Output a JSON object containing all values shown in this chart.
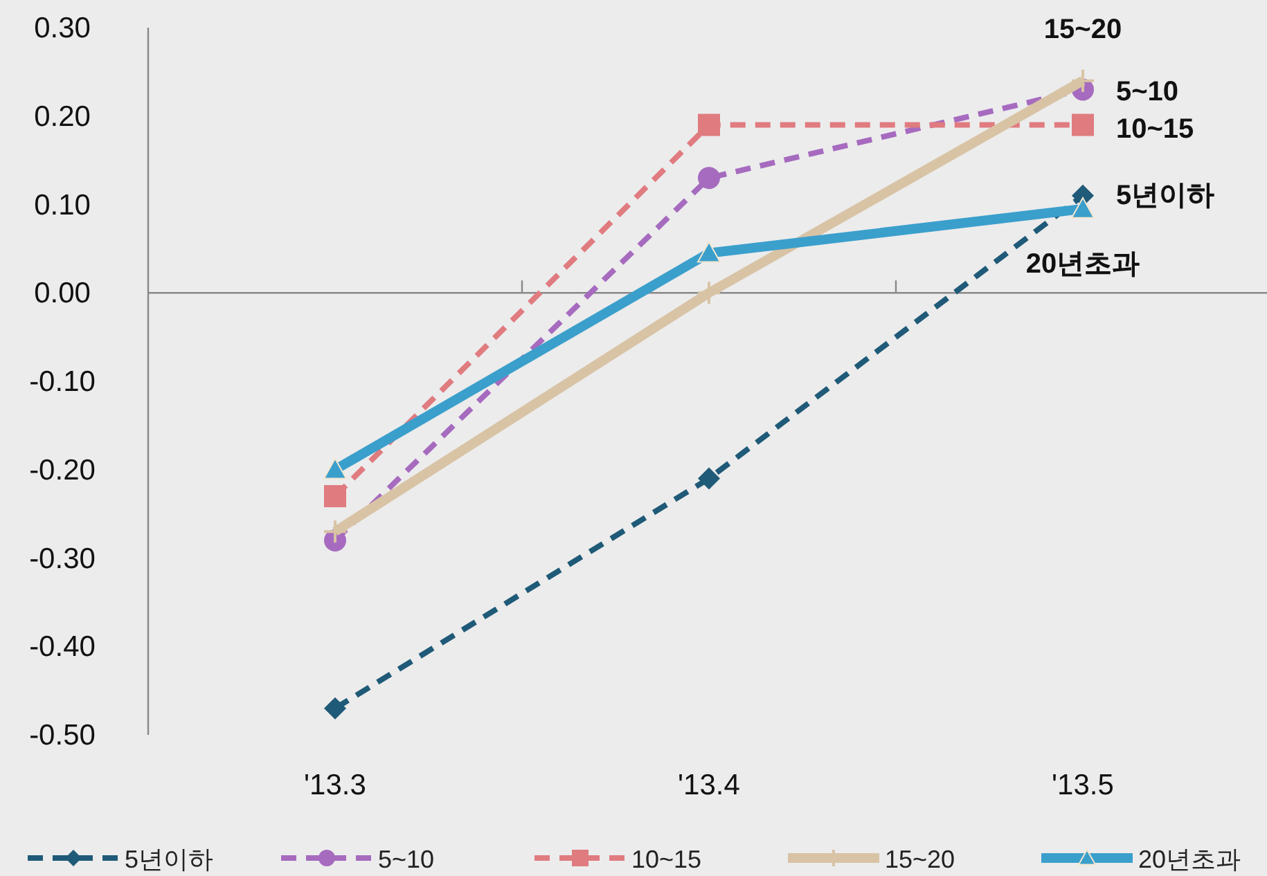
{
  "chart_data": {
    "type": "line",
    "categories": [
      "'13.3",
      "'13.4",
      "'13.5"
    ],
    "ylim": [
      -0.5,
      0.3
    ],
    "yticks": [
      {
        "value": -0.5,
        "label": "-0.50"
      },
      {
        "value": -0.4,
        "label": "-0.40"
      },
      {
        "value": -0.3,
        "label": "-0.30"
      },
      {
        "value": -0.2,
        "label": "-0.20"
      },
      {
        "value": -0.1,
        "label": "-0.10"
      },
      {
        "value": 0,
        "label": "0.00"
      },
      {
        "value": 0.1,
        "label": "0.10"
      },
      {
        "value": 0.2,
        "label": "0.20"
      },
      {
        "value": 0.3,
        "label": "0.30"
      }
    ],
    "legend": "bottom",
    "series": [
      {
        "name": "5년이하",
        "color": "#1f5a78",
        "marker": "diamond",
        "line_style": "dashed",
        "values": [
          -0.47,
          -0.21,
          0.11
        ]
      },
      {
        "name": "5~10",
        "color": "#a66bbf",
        "marker": "circle",
        "line_style": "dashed",
        "values": [
          -0.28,
          0.13,
          0.23
        ]
      },
      {
        "name": "10~15",
        "color": "#e07b80",
        "marker": "square",
        "line_style": "dashed",
        "values": [
          -0.23,
          0.19,
          0.19
        ]
      },
      {
        "name": "15~20",
        "color": "#d8c3a5",
        "marker": "cross",
        "line_style": "solid",
        "values": [
          -0.27,
          0.0,
          0.24
        ]
      },
      {
        "name": "20년초과",
        "color": "#3b9fcc",
        "marker": "triangle",
        "line_style": "solid",
        "values": [
          -0.2,
          0.045,
          0.095
        ]
      }
    ]
  }
}
